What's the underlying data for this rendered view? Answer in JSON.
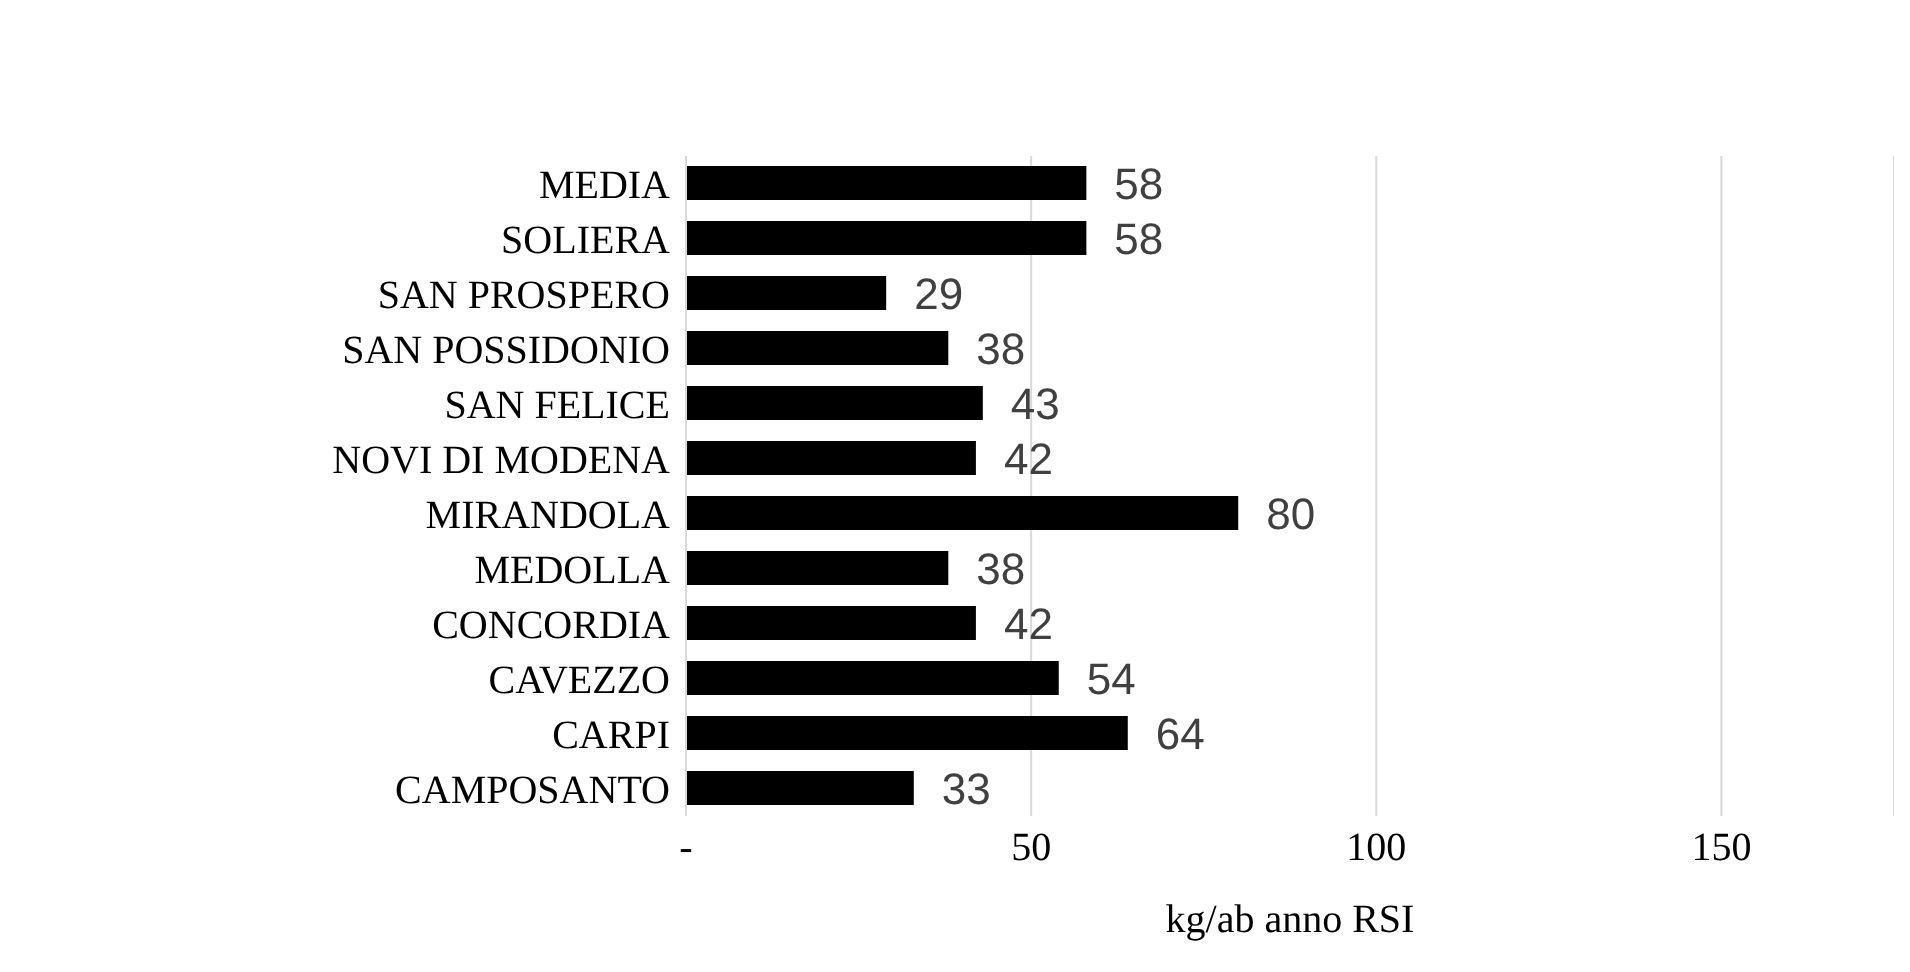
{
  "chart_data": {
    "type": "bar",
    "orientation": "horizontal",
    "categories": [
      "MEDIA",
      "SOLIERA",
      "SAN PROSPERO",
      "SAN POSSIDONIO",
      "SAN FELICE",
      "NOVI DI MODENA",
      "MIRANDOLA",
      "MEDOLLA",
      "CONCORDIA",
      "CAVEZZO",
      "CARPI",
      "CAMPOSANTO"
    ],
    "values": [
      58,
      58,
      29,
      38,
      43,
      42,
      80,
      38,
      42,
      54,
      64,
      33
    ],
    "color": "#000000",
    "xlim": [
      0,
      175
    ],
    "xticks": [
      {
        "value": 0,
        "label": "-"
      },
      50,
      100,
      150
    ],
    "xlabel": "kg/ab anno RSI",
    "grid": "x",
    "data_labels": true,
    "legend": false
  }
}
